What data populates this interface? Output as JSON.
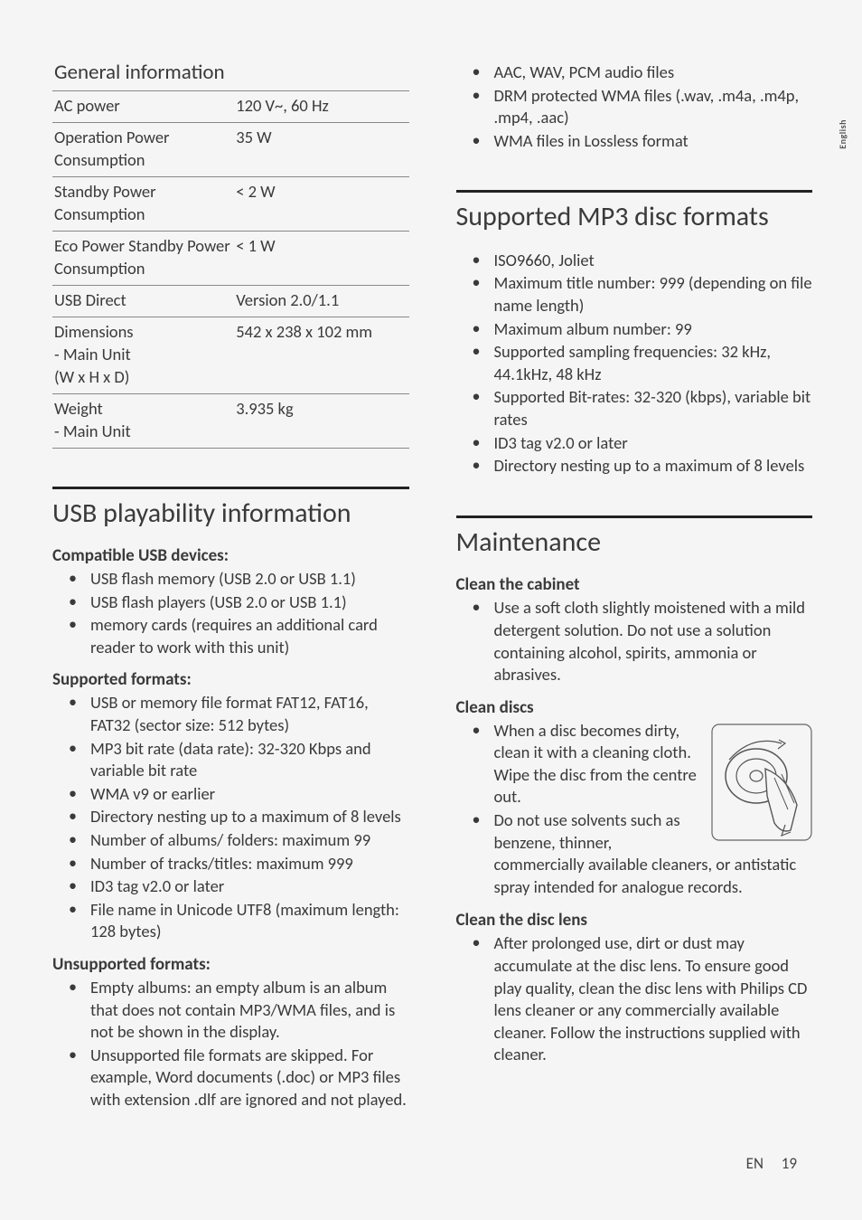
{
  "sideLabel": "English",
  "table": {
    "title": "General information",
    "rows": [
      {
        "label": "AC power",
        "value": "120 V~, 60 Hz"
      },
      {
        "label": "Operation Power Consumption",
        "value": "35 W"
      },
      {
        "label": "Standby Power Consumption",
        "value": "< 2 W"
      },
      {
        "label": "Eco Power Standby Power Consumption",
        "value": "< 1 W"
      },
      {
        "label": "USB Direct",
        "value": "Version 2.0/1.1"
      },
      {
        "label": "Dimensions\n- Main Unit\n(W x H x D)",
        "value": "542 x 238 x 102 mm"
      },
      {
        "label": "Weight\n- Main Unit",
        "value": "3.935 kg"
      }
    ]
  },
  "usb": {
    "heading": "USB playability information",
    "compat": {
      "title": "Compatible USB devices:",
      "items": [
        "USB flash memory (USB 2.0 or USB 1.1)",
        "USB flash players (USB 2.0 or USB 1.1)",
        "memory cards (requires an additional card reader to work with this unit)"
      ]
    },
    "supported": {
      "title": "Supported formats:",
      "items": [
        "USB or memory file format FAT12, FAT16, FAT32 (sector size: 512 bytes)",
        "MP3 bit rate (data rate): 32-320 Kbps and variable bit rate",
        "WMA v9 or earlier",
        "Directory nesting up to a maximum of 8 levels",
        "Number of albums/ folders: maximum 99",
        "Number of tracks/titles: maximum 999",
        "ID3 tag v2.0 or later",
        "File name in Unicode UTF8 (maximum length: 128 bytes)"
      ]
    },
    "unsupported": {
      "title": "Unsupported formats:",
      "items": [
        "Empty albums: an empty album is an album that does not contain MP3/WMA files, and is not be shown in the display.",
        "Unsupported file formats are skipped. For example, Word documents (.doc) or MP3 files with extension .dlf are ignored and not played."
      ]
    }
  },
  "rightTop": {
    "items": [
      "AAC, WAV, PCM audio files",
      "DRM protected WMA files (.wav, .m4a, .m4p, .mp4, .aac)",
      "WMA files in Lossless format"
    ]
  },
  "mp3": {
    "heading": "Supported MP3 disc formats",
    "items": [
      "ISO9660, Joliet",
      "Maximum title number: 999 (depending on file name length)",
      "Maximum album number: 99",
      "Supported sampling frequencies: 32 kHz, 44.1kHz, 48 kHz",
      "Supported Bit-rates: 32-320 (kbps), variable bit rates",
      "ID3 tag v2.0 or later",
      "Directory nesting up to a maximum of 8 levels"
    ]
  },
  "maint": {
    "heading": "Maintenance",
    "cabinet": {
      "title": "Clean the cabinet",
      "items": [
        "Use a soft cloth slightly moistened with a mild detergent solution. Do not use a solution containing alcohol, spirits, ammonia or abrasives."
      ]
    },
    "discs": {
      "title": "Clean discs",
      "items": [
        "When a disc becomes dirty, clean it with a cleaning cloth. Wipe the disc from the centre out.",
        "Do not use solvents such as benzene, thinner, commercially available cleaners, or antistatic spray intended for analogue records."
      ]
    },
    "lens": {
      "title": "Clean the disc lens",
      "items": [
        "After prolonged use, dirt or dust may accumulate at the disc lens. To ensure good play quality, clean the disc lens with Philips CD lens cleaner or any commercially available cleaner. Follow the instructions supplied with cleaner."
      ]
    }
  },
  "footer": {
    "lang": "EN",
    "page": "19"
  }
}
